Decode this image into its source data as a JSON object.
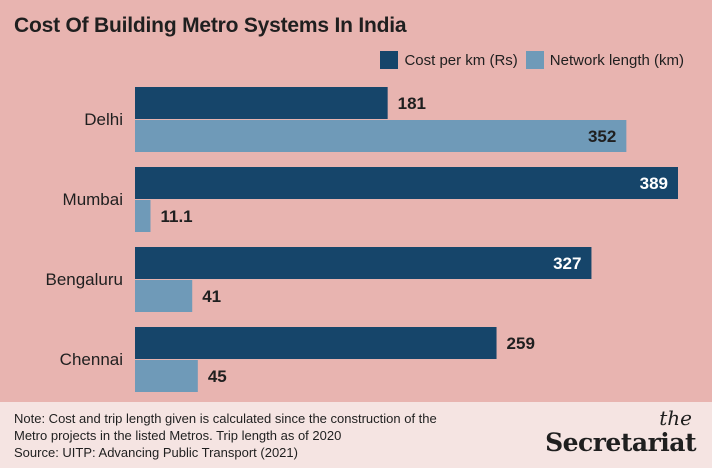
{
  "colors": {
    "background": "#e8b4b0",
    "cost": "#16456a",
    "network": "#6f9ab8",
    "footer_bg": "#f5e4e2"
  },
  "chart_data": {
    "type": "bar",
    "orientation": "horizontal",
    "title": "Cost Of Building Metro Systems In India",
    "categories": [
      "Delhi",
      "Mumbai",
      "Bengaluru",
      "Chennai"
    ],
    "series": [
      {
        "name": "Cost per km (Rs)",
        "values": [
          181,
          389,
          327,
          259
        ],
        "labels": [
          "181",
          "389",
          "327",
          "259"
        ]
      },
      {
        "name": "Network length (km)",
        "values": [
          352,
          11.1,
          41,
          45
        ],
        "labels": [
          "352",
          "11.1",
          "41",
          "45"
        ]
      }
    ],
    "legend_position": "top-right",
    "grid": false
  },
  "footer": {
    "note_lines": [
      "Note: Cost and trip length given is calculated since the construction of the",
      "Metro projects in the listed Metros. Trip length as of 2020",
      "Source: UITP: Advancing Public Transport (2021)"
    ],
    "brand_the": "the",
    "brand_name": "Secretariat"
  }
}
